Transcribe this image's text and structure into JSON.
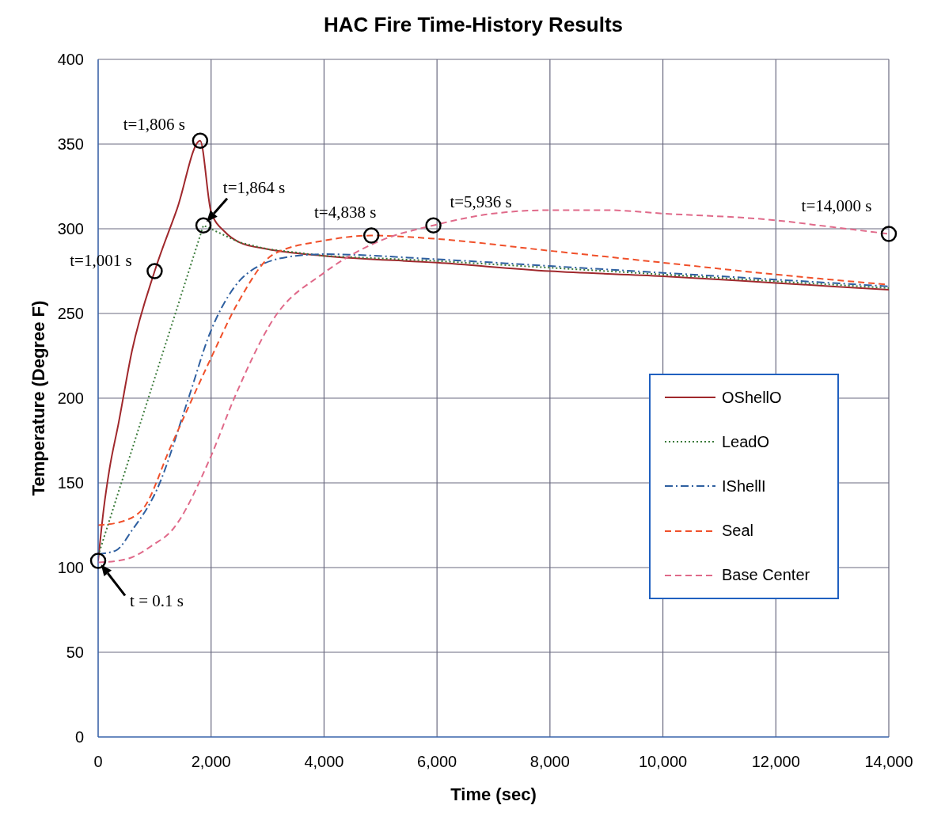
{
  "chart_data": {
    "type": "line",
    "title": "HAC Fire Time-History Results",
    "xlabel": "Time (sec)",
    "ylabel": "Temperature (Degree F)",
    "xlim": [
      0,
      14000
    ],
    "xticks": [
      {
        "value": 0,
        "label": "0"
      },
      {
        "value": 2000,
        "label": "2,000"
      },
      {
        "value": 4000,
        "label": "4,000"
      },
      {
        "value": 6000,
        "label": "6,000"
      },
      {
        "value": 8000,
        "label": "8,000"
      },
      {
        "value": 10000,
        "label": "10,000"
      },
      {
        "value": 12000,
        "label": "12,000"
      },
      {
        "value": 14000,
        "label": "14,000"
      }
    ],
    "ylim": [
      0,
      400
    ],
    "yticks": [
      0,
      50,
      100,
      150,
      200,
      250,
      300,
      350,
      400
    ],
    "grid": true,
    "legend": "right",
    "marker": "none",
    "series": [
      {
        "name": "OShellO",
        "color": "#a0282c",
        "line_style": "solid",
        "x": [
          0,
          100,
          200,
          360,
          600,
          1001,
          1400,
          1806,
          2000,
          2250,
          2500,
          3000,
          4000,
          6000,
          8000,
          10000,
          12000,
          14000
        ],
        "values": [
          104,
          135,
          158,
          185,
          228,
          275,
          312,
          352,
          310,
          298,
          292,
          288,
          284,
          280,
          275,
          272,
          268,
          264
        ]
      },
      {
        "name": "LeadO",
        "color": "#3a7a3a",
        "line_style": "dotted",
        "x": [
          0,
          1864,
          2500,
          3000,
          4000,
          6000,
          8000,
          10000,
          12000,
          14000
        ],
        "values": [
          107,
          302,
          292,
          288,
          284,
          281,
          277,
          273,
          269,
          265
        ]
      },
      {
        "name": "IShellI",
        "color": "#2e5fa0",
        "line_style": "dashdot",
        "x": [
          0,
          310,
          600,
          1040,
          1600,
          1975,
          2400,
          2790,
          3500,
          4000,
          6000,
          8000,
          10000,
          12000,
          14000
        ],
        "values": [
          108,
          110,
          122,
          146,
          200,
          238,
          265,
          277,
          284,
          285,
          282,
          278,
          274,
          270,
          266
        ]
      },
      {
        "name": "Seal",
        "color": "#f0502a",
        "line_style": "dashed",
        "x": [
          0,
          400,
          800,
          1280,
          1975,
          2470,
          3110,
          4000,
          4838,
          6000,
          8000,
          10000,
          12000,
          14000
        ],
        "values": [
          125,
          127,
          135,
          171,
          222,
          256,
          285,
          293,
          296,
          294,
          287,
          280,
          273,
          267
        ]
      },
      {
        "name": "Base Center",
        "color": "#e06a8a",
        "line_style": "dashed",
        "x": [
          0,
          500,
          1000,
          1280,
          1975,
          2410,
          3110,
          4000,
          5000,
          5936,
          7000,
          8000,
          9000,
          10000,
          12000,
          13000,
          14000
        ],
        "values": [
          103,
          105,
          114,
          121,
          164,
          200,
          247,
          274,
          293,
          302,
          309,
          311,
          311,
          309,
          305,
          301,
          297
        ]
      }
    ],
    "annotations": [
      {
        "text": "t = 0.1 s",
        "x": 0.1,
        "y": 104
      },
      {
        "text": "t=1,001 s",
        "x": 1001,
        "y": 275
      },
      {
        "text": "t=1,806 s",
        "x": 1806,
        "y": 352
      },
      {
        "text": "t=1,864 s",
        "x": 1864,
        "y": 302
      },
      {
        "text": "t=4,838 s",
        "x": 4838,
        "y": 296
      },
      {
        "text": "t=5,936 s",
        "x": 5936,
        "y": 302
      },
      {
        "text": "t=14,000 s",
        "x": 14000,
        "y": 297
      }
    ]
  }
}
